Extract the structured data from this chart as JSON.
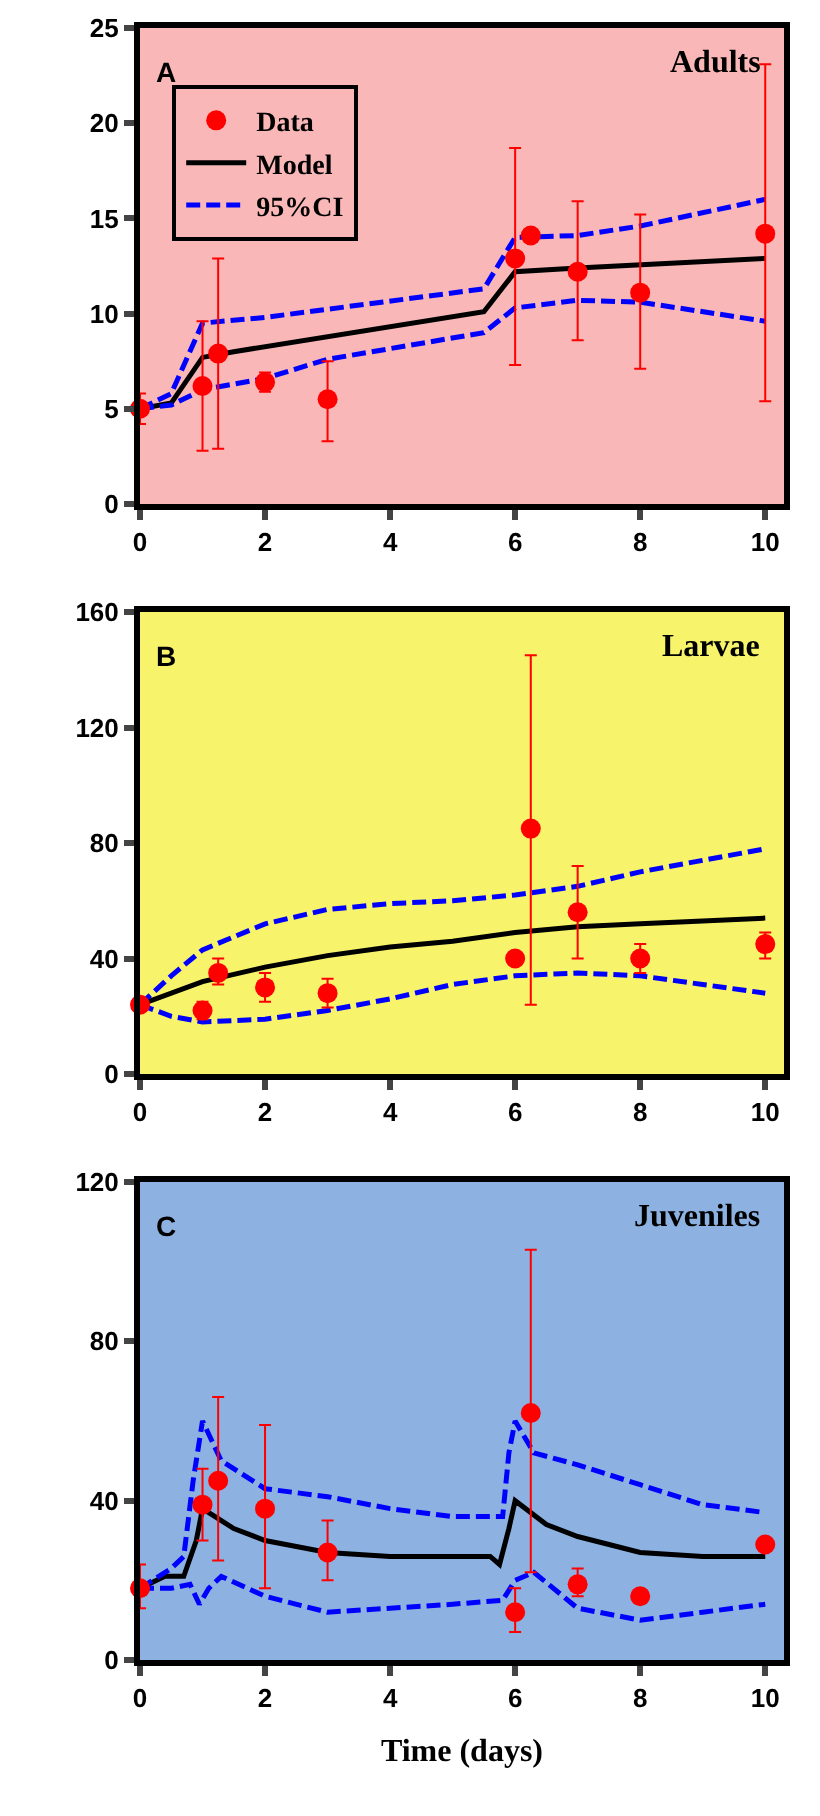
{
  "chart_data": [
    {
      "type": "line",
      "annotations": [
        "A",
        "Adults"
      ],
      "xlim": [
        0,
        10.3
      ],
      "xticks": [
        0,
        2,
        4,
        6,
        8,
        10
      ],
      "ylim": [
        0,
        25
      ],
      "yticks": [
        0,
        5,
        10,
        15,
        20,
        25
      ],
      "grid": false,
      "legend": "top left",
      "series": [
        {
          "name": "Data",
          "type": "scatter",
          "marker": "circle",
          "color": "#ff0000",
          "x": [
            0,
            1,
            1.25,
            2,
            3,
            6,
            6.25,
            7,
            8,
            10
          ],
          "values": [
            5.0,
            6.2,
            7.9,
            6.4,
            5.5,
            12.9,
            14.1,
            12.2,
            11.1,
            14.2
          ],
          "errors": [
            [
              4.2,
              5.8
            ],
            [
              2.8,
              9.6
            ],
            [
              2.9,
              12.9
            ],
            [
              5.9,
              6.9
            ],
            [
              3.3,
              7.5
            ],
            [
              7.3,
              18.7
            ],
            null,
            [
              8.6,
              15.9
            ],
            [
              7.1,
              15.2
            ],
            [
              5.4,
              23.1
            ]
          ]
        },
        {
          "name": "Model",
          "marker": "none",
          "color": "#000000",
          "line_style": "solid",
          "x": [
            0,
            0.5,
            1,
            1.5,
            5.5,
            6,
            7,
            10
          ],
          "values": [
            5,
            5.3,
            7.7,
            8.0,
            10.1,
            12.2,
            12.4,
            12.9
          ]
        },
        {
          "name": "95%CI",
          "marker": "none",
          "color": "#0000ff",
          "line_style": "dashed",
          "x": [
            0,
            0.5,
            1,
            2,
            5.5,
            6,
            7,
            8,
            10
          ],
          "values": [
            5,
            5.8,
            9.5,
            9.8,
            11.3,
            14.0,
            14.1,
            14.6,
            16.0
          ]
        },
        {
          "marker": "none",
          "color": "#0000ff",
          "line_style": "dashed",
          "x": [
            0,
            0.5,
            1,
            2,
            3,
            5.5,
            6,
            7,
            8,
            10
          ],
          "values": [
            5,
            5.2,
            6.0,
            6.6,
            7.6,
            9.0,
            10.3,
            10.7,
            10.6,
            9.6
          ]
        }
      ]
    },
    {
      "type": "line",
      "annotations": [
        "B",
        "Larvae"
      ],
      "xlim": [
        0,
        10.3
      ],
      "xticks": [
        0,
        2,
        4,
        6,
        8,
        10
      ],
      "ylim": [
        0,
        160
      ],
      "yticks": [
        0,
        40,
        80,
        120,
        160
      ],
      "grid": false,
      "legend": false,
      "series": [
        {
          "type": "scatter",
          "marker": "circle",
          "color": "#ff0000",
          "x": [
            0,
            1,
            1.25,
            2,
            3,
            6,
            6.25,
            7,
            8,
            10
          ],
          "values": [
            24,
            22,
            35,
            30,
            28,
            40,
            85,
            56,
            40,
            45
          ],
          "errors": [
            null,
            [
              19,
              25
            ],
            [
              31,
              40
            ],
            [
              25,
              35
            ],
            [
              23,
              33
            ],
            null,
            [
              24,
              145
            ],
            [
              40,
              72
            ],
            [
              35,
              45
            ],
            [
              40,
              49
            ]
          ]
        },
        {
          "marker": "none",
          "color": "#000000",
          "line_style": "solid",
          "x": [
            0,
            1,
            2,
            3,
            4,
            5,
            6,
            7,
            8,
            9,
            10
          ],
          "values": [
            24,
            32,
            37,
            41,
            44,
            46,
            49,
            51,
            52,
            53,
            54
          ]
        },
        {
          "marker": "none",
          "color": "#0000ff",
          "line_style": "dashed",
          "x": [
            0,
            0.5,
            1,
            2,
            3,
            4,
            5,
            6,
            7,
            8,
            9,
            10
          ],
          "values": [
            24,
            34,
            43,
            52,
            57,
            59,
            60,
            62,
            65,
            70,
            74,
            78
          ]
        },
        {
          "marker": "none",
          "color": "#0000ff",
          "line_style": "dashed",
          "x": [
            0,
            0.5,
            1,
            2,
            3,
            4,
            5,
            6,
            7,
            8,
            9,
            10
          ],
          "values": [
            24,
            20,
            18,
            19,
            22,
            26,
            31,
            34,
            35,
            34,
            31,
            28
          ]
        }
      ]
    },
    {
      "type": "line",
      "annotations": [
        "C",
        "Juveniles"
      ],
      "xlabel": "Time (days)",
      "xlim": [
        0,
        10.3
      ],
      "xticks": [
        0,
        2,
        4,
        6,
        8,
        10
      ],
      "ylim": [
        0,
        120
      ],
      "yticks": [
        0,
        40,
        80,
        120
      ],
      "grid": false,
      "legend": false,
      "series": [
        {
          "type": "scatter",
          "marker": "circle",
          "color": "#ff0000",
          "x": [
            0,
            1,
            1.25,
            2,
            3,
            6,
            6.25,
            7,
            8,
            10
          ],
          "values": [
            18,
            39,
            45,
            38,
            27,
            12,
            62,
            19,
            16,
            29
          ],
          "errors": [
            [
              13,
              24
            ],
            [
              30,
              48
            ],
            [
              25,
              66
            ],
            [
              18,
              59
            ],
            [
              20,
              35
            ],
            [
              7,
              18
            ],
            [
              22,
              103
            ],
            [
              16,
              23
            ],
            null,
            null
          ]
        },
        {
          "marker": "none",
          "color": "#000000",
          "line_style": "solid",
          "x": [
            0,
            0.4,
            0.7,
            0.9,
            1,
            1.5,
            2,
            3,
            4,
            5,
            5.6,
            5.75,
            5.9,
            6,
            6.5,
            7,
            8,
            9,
            10
          ],
          "values": [
            18,
            21,
            21,
            30,
            38,
            33,
            30,
            27,
            26,
            26,
            26,
            24,
            33,
            40,
            34,
            31,
            27,
            26,
            26
          ]
        },
        {
          "marker": "none",
          "color": "#0000ff",
          "line_style": "dashed",
          "x": [
            0,
            0.5,
            0.7,
            0.85,
            1,
            1.3,
            2,
            3,
            4,
            5,
            5.8,
            5.9,
            6,
            6.3,
            7,
            8,
            9,
            10
          ],
          "values": [
            18,
            23,
            26,
            45,
            60,
            50,
            43,
            41,
            38,
            36,
            36,
            52,
            60,
            52,
            49,
            44,
            39,
            37
          ]
        },
        {
          "marker": "none",
          "color": "#0000ff",
          "line_style": "dashed",
          "x": [
            0,
            0.5,
            0.8,
            0.95,
            1.1,
            1.3,
            2,
            3,
            4,
            5,
            5.8,
            6,
            6.3,
            7,
            8,
            9,
            10
          ],
          "values": [
            18,
            18,
            19,
            14,
            18,
            21,
            16,
            12,
            13,
            14,
            15,
            20,
            22,
            13,
            10,
            12,
            14
          ]
        }
      ]
    }
  ]
}
